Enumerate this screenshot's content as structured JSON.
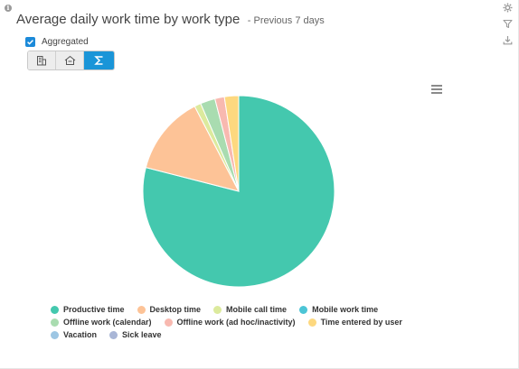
{
  "header": {
    "title": "Average daily work time by work type",
    "subtitle": "- Previous 7 days",
    "info_icon": "i"
  },
  "toolbar": {
    "tools": [
      "gear-icon",
      "filter-icon",
      "download-icon"
    ]
  },
  "aggregated": {
    "label": "Aggregated",
    "checked": true
  },
  "view_toggle": {
    "options": [
      "building-icon",
      "house-icon",
      "sigma-icon"
    ],
    "selected": "sigma-icon"
  },
  "chart_data": {
    "type": "pie",
    "title": "",
    "series": [
      {
        "name": "Productive time",
        "value": 79.0,
        "color": "#44c8ae"
      },
      {
        "name": "Desktop time",
        "value": 13.4,
        "color": "#fdc397"
      },
      {
        "name": "Mobile call time",
        "value": 1.1,
        "color": "#dcea9d"
      },
      {
        "name": "Mobile work time",
        "value": 0.0,
        "color": "#4cc5d6"
      },
      {
        "name": "Offline work (calendar)",
        "value": 2.5,
        "color": "#a9dcb0"
      },
      {
        "name": "Offline work (ad hoc/inactivity)",
        "value": 1.6,
        "color": "#f8b9b0"
      },
      {
        "name": "Time entered by user",
        "value": 2.4,
        "color": "#fdd87f"
      },
      {
        "name": "Vacation",
        "value": 0.0,
        "color": "#9dc6e3"
      },
      {
        "name": "Sick leave",
        "value": 0.0,
        "color": "#a9b6d6"
      }
    ],
    "legend_position": "bottom"
  }
}
